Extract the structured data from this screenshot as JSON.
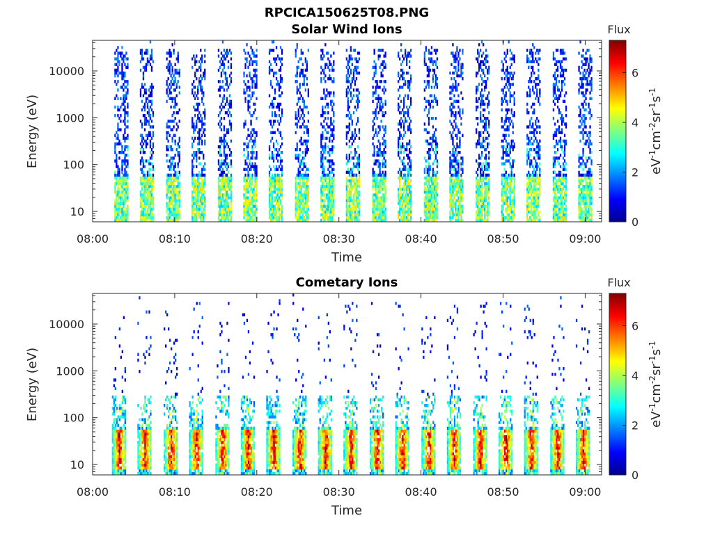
{
  "figure_title": "RPCICA150625T08.PNG",
  "chart_data": [
    {
      "type": "heatmap",
      "title": "Solar Wind Ions",
      "xlabel": "Time",
      "ylabel": "Energy (eV)",
      "y_scale": "log",
      "xlim": [
        "08:00",
        "09:02"
      ],
      "ylim": [
        6,
        45000
      ],
      "x_ticks": [
        "08:00",
        "08:10",
        "08:20",
        "08:30",
        "08:40",
        "08:50",
        "09:00"
      ],
      "y_ticks": [
        10,
        100,
        1000,
        10000
      ],
      "y_tick_labels": [
        "10",
        "100",
        "1000",
        "10000"
      ],
      "colorbar": {
        "title": "Flux",
        "label": "eV-1cm-2sr-1s-1",
        "range": [
          0,
          7.3
        ],
        "ticks": [
          0,
          2,
          4,
          6
        ],
        "colormap": "jet"
      },
      "scan_minutes": [
        3.5,
        6.6,
        9.8,
        12.9,
        16.1,
        19.2,
        22.3,
        25.5,
        28.6,
        31.7,
        34.9,
        38.0,
        41.2,
        44.3,
        47.5,
        50.6,
        53.7,
        56.9,
        60.0
      ],
      "profile": {
        "high_energy_flux": 1.0,
        "low_energy_peak_flux": 4.5,
        "low_energy_band_eV": [
          8,
          40
        ],
        "scan_width_min": 1.7
      }
    },
    {
      "type": "heatmap",
      "title": "Cometary Ions",
      "xlabel": "Time",
      "ylabel": "Energy (eV)",
      "y_scale": "log",
      "xlim": [
        "08:00",
        "09:02"
      ],
      "ylim": [
        6,
        45000
      ],
      "x_ticks": [
        "08:00",
        "08:10",
        "08:20",
        "08:30",
        "08:40",
        "08:50",
        "09:00"
      ],
      "y_ticks": [
        10,
        100,
        1000,
        10000
      ],
      "y_tick_labels": [
        "10",
        "100",
        "1000",
        "10000"
      ],
      "colorbar": {
        "title": "Flux",
        "label": "eV-1cm-2sr-1s-1",
        "range": [
          0,
          7.3
        ],
        "ticks": [
          0,
          2,
          4,
          6
        ],
        "colormap": "jet"
      },
      "scan_minutes": [
        3.2,
        6.3,
        9.5,
        12.6,
        15.8,
        18.9,
        22.0,
        25.2,
        28.3,
        31.4,
        34.6,
        37.7,
        40.9,
        44.0,
        47.2,
        50.3,
        53.4,
        56.6,
        59.7
      ],
      "profile": {
        "high_energy_flux": 1.0,
        "low_energy_peak_flux": 6.8,
        "low_energy_band_eV": [
          10,
          40
        ],
        "scan_width_min": 1.7
      }
    }
  ]
}
